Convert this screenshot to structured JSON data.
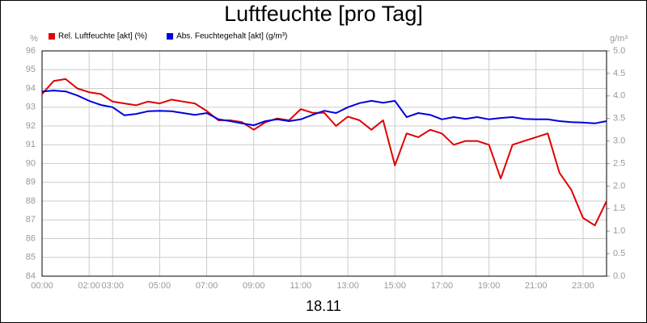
{
  "chart_data": {
    "type": "line",
    "title": "Luftfeuchte [pro Tag]",
    "xlabel": "18.11",
    "ylabel": "%",
    "y2label": "g/m³",
    "x": [
      0,
      0.5,
      1,
      1.5,
      2,
      2.5,
      3,
      3.5,
      4,
      4.5,
      5,
      5.5,
      6,
      6.5,
      7,
      7.5,
      8,
      8.5,
      9,
      9.5,
      10,
      10.5,
      11,
      11.5,
      12,
      12.5,
      13,
      13.5,
      14,
      14.5,
      15,
      15.5,
      16,
      16.5,
      17,
      17.5,
      18,
      18.5,
      19,
      19.5,
      20,
      20.5,
      21,
      21.5,
      22,
      22.5,
      23,
      23.5,
      24
    ],
    "xlim": [
      0,
      24
    ],
    "xticks": [
      {
        "value": 0,
        "label": "00:00"
      },
      {
        "value": 2,
        "label": "02:00"
      },
      {
        "value": 3,
        "label": "03:00"
      },
      {
        "value": 5,
        "label": "05:00"
      },
      {
        "value": 7,
        "label": "07:00"
      },
      {
        "value": 9,
        "label": "09:00"
      },
      {
        "value": 11,
        "label": "11:00"
      },
      {
        "value": 13,
        "label": "13:00"
      },
      {
        "value": 15,
        "label": "15:00"
      },
      {
        "value": 17,
        "label": "17:00"
      },
      {
        "value": 19,
        "label": "19:00"
      },
      {
        "value": 21,
        "label": "21:00"
      },
      {
        "value": 23,
        "label": "23:00"
      }
    ],
    "ylim": [
      84,
      96
    ],
    "yticks": [
      84,
      85,
      86,
      87,
      88,
      89,
      90,
      91,
      92,
      93,
      94,
      95,
      96
    ],
    "y2lim": [
      0,
      5
    ],
    "y2ticks": [
      {
        "value": 0,
        "label": "0.0"
      },
      {
        "value": 0.5,
        "label": "0.5"
      },
      {
        "value": 1,
        "label": "1.0"
      },
      {
        "value": 1.5,
        "label": "1.5"
      },
      {
        "value": 2,
        "label": "2.0"
      },
      {
        "value": 2.5,
        "label": "2.5"
      },
      {
        "value": 3,
        "label": "3.0"
      },
      {
        "value": 3.5,
        "label": "3.5"
      },
      {
        "value": 4,
        "label": "4.0"
      },
      {
        "value": 4.5,
        "label": "4.5"
      },
      {
        "value": 5,
        "label": "5.0"
      }
    ],
    "grid": true,
    "series": [
      {
        "name": "Rel. Luftfeuchte [akt] (%)",
        "color": "#e00000",
        "values": [
          93.7,
          94.4,
          94.5,
          94.0,
          93.8,
          93.7,
          93.3,
          93.2,
          93.1,
          93.3,
          93.2,
          93.4,
          93.3,
          93.2,
          92.8,
          92.3,
          92.3,
          92.2,
          91.8,
          92.2,
          92.4,
          92.3,
          92.9,
          92.7,
          92.7,
          92.0,
          92.5,
          92.3,
          91.8,
          92.3,
          89.9,
          91.6,
          91.4,
          91.8,
          91.6,
          91.0,
          91.2,
          91.2,
          91.0,
          89.2,
          91.0,
          91.2,
          91.4,
          91.6,
          89.5,
          88.6,
          87.1,
          86.7,
          88.0
        ]
      },
      {
        "name": "Abs. Feuchtegehalt [akt] (g/m³)",
        "color": "#0000e0",
        "axis": "y2",
        "values": [
          4.1,
          4.12,
          4.1,
          4.01,
          3.89,
          3.8,
          3.75,
          3.57,
          3.6,
          3.66,
          3.67,
          3.66,
          3.62,
          3.58,
          3.62,
          3.48,
          3.44,
          3.39,
          3.35,
          3.44,
          3.48,
          3.44,
          3.48,
          3.58,
          3.67,
          3.62,
          3.75,
          3.84,
          3.89,
          3.85,
          3.89,
          3.53,
          3.62,
          3.58,
          3.48,
          3.53,
          3.49,
          3.53,
          3.48,
          3.51,
          3.53,
          3.49,
          3.48,
          3.48,
          3.44,
          3.42,
          3.41,
          3.39,
          3.44
        ]
      }
    ]
  }
}
